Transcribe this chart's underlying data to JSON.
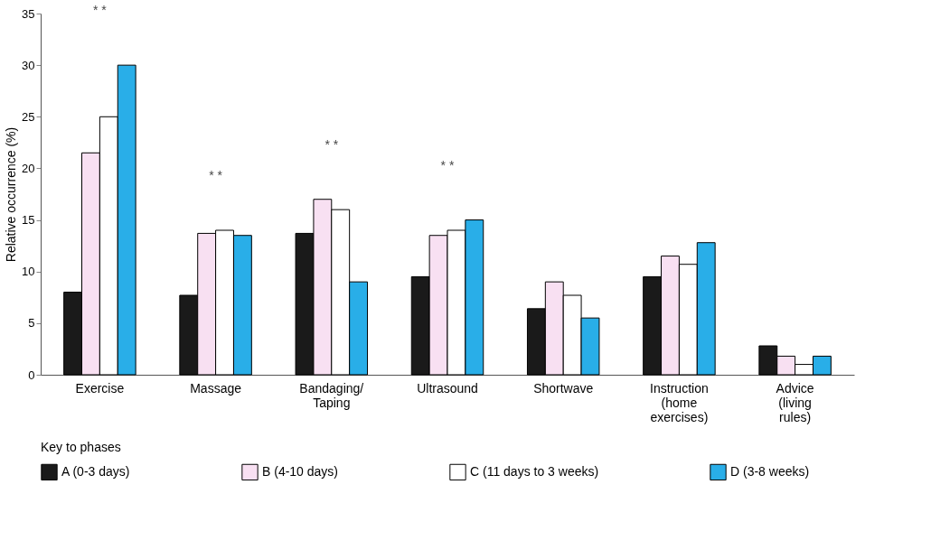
{
  "chart_data": {
    "type": "bar",
    "ylabel": "Relative occurrence (%)",
    "legend_title": "Key to phases",
    "legend": "bottom",
    "categories": [
      "Exercise",
      "Massage",
      "Bandaging/\nTaping",
      "Ultrasound",
      "Shortwave",
      "Instruction\n(home\nexercises)",
      "Advice\n(living\nrules)"
    ],
    "series": [
      {
        "name": "A (0-3 days)",
        "color": "#1a1a1a",
        "values": [
          8,
          7.7,
          13.7,
          9.5,
          6.4,
          9.5,
          2.8
        ]
      },
      {
        "name": "B (4-10 days)",
        "color": "#f8e0f2",
        "values": [
          21.5,
          13.7,
          17,
          13.5,
          9,
          11.5,
          1.8
        ]
      },
      {
        "name": "C (11 days to 3 weeks)",
        "color": "#ffffff",
        "values": [
          25,
          14,
          16,
          14,
          7.7,
          10.7,
          1
        ]
      },
      {
        "name": "D (3-8 weeks)",
        "color": "#29aee8",
        "values": [
          30,
          13.5,
          9,
          15,
          5.5,
          12.8,
          1.8
        ]
      }
    ],
    "ylim": [
      0,
      35
    ],
    "yticks": [
      0,
      5,
      10,
      15,
      20,
      25,
      30,
      35
    ],
    "annotations": [
      "* *",
      "* *",
      "* *",
      "* *"
    ]
  }
}
